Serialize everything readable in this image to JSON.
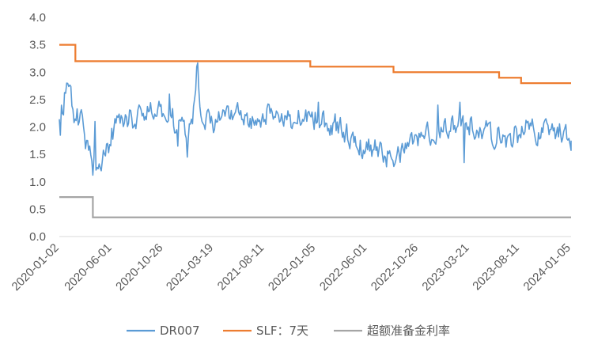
{
  "chart_data": {
    "type": "line",
    "title": "",
    "xlabel": "",
    "ylabel": "",
    "ylim": [
      0,
      4.0
    ],
    "yticks": [
      "0.0",
      "0.5",
      "1.0",
      "1.5",
      "2.0",
      "2.5",
      "3.0",
      "3.5",
      "4.0"
    ],
    "xrange": [
      "2020-01-02",
      "2024-01-05"
    ],
    "xticks": [
      "2020-01-02",
      "2020-06-01",
      "2020-10-26",
      "2021-03-19",
      "2021-08-11",
      "2022-01-05",
      "2022-06-01",
      "2022-10-26",
      "2023-03-21",
      "2023-08-11",
      "2024-01-05"
    ],
    "grid": false,
    "legend_position": "bottom",
    "series": [
      {
        "name": "DR007",
        "color": "#5B9BD5",
        "style": "noisy",
        "points": [
          [
            "2020-01-02",
            2.0
          ],
          [
            "2020-01-10",
            2.2
          ],
          [
            "2020-01-20",
            2.7
          ],
          [
            "2020-01-27",
            2.75
          ],
          [
            "2020-02-05",
            2.55
          ],
          [
            "2020-02-12",
            2.2
          ],
          [
            "2020-02-25",
            2.15
          ],
          [
            "2020-03-05",
            2.1
          ],
          [
            "2020-03-15",
            1.9
          ],
          [
            "2020-03-22",
            1.6
          ],
          [
            "2020-03-28",
            1.5
          ],
          [
            "2020-04-05",
            1.3
          ],
          [
            "2020-04-15",
            1.35
          ],
          [
            "2020-04-25",
            1.3
          ],
          [
            "2020-05-05",
            1.45
          ],
          [
            "2020-05-15",
            1.6
          ],
          [
            "2020-05-25",
            1.75
          ],
          [
            "2020-06-10",
            2.0
          ],
          [
            "2020-07-01",
            2.05
          ],
          [
            "2020-07-20",
            2.15
          ],
          [
            "2020-08-10",
            2.15
          ],
          [
            "2020-09-01",
            2.2
          ],
          [
            "2020-10-01",
            2.3
          ],
          [
            "2020-10-20",
            2.25
          ],
          [
            "2020-11-10",
            2.3
          ],
          [
            "2020-12-01",
            2.05
          ],
          [
            "2020-12-20",
            2.0
          ],
          [
            "2021-01-05",
            1.95
          ],
          [
            "2021-01-20",
            2.3
          ],
          [
            "2021-01-28",
            2.75
          ],
          [
            "2021-02-05",
            2.6
          ],
          [
            "2021-02-15",
            2.25
          ],
          [
            "2021-03-01",
            2.1
          ],
          [
            "2021-04-01",
            2.1
          ],
          [
            "2021-05-01",
            2.15
          ],
          [
            "2021-06-01",
            2.2
          ],
          [
            "2021-07-01",
            2.15
          ],
          [
            "2021-08-01",
            2.2
          ],
          [
            "2021-09-01",
            2.25
          ],
          [
            "2021-10-01",
            2.2
          ],
          [
            "2021-11-01",
            2.15
          ],
          [
            "2021-12-01",
            2.2
          ],
          [
            "2022-01-01",
            2.15
          ],
          [
            "2022-02-01",
            2.1
          ],
          [
            "2022-03-01",
            2.05
          ],
          [
            "2022-04-01",
            1.9
          ],
          [
            "2022-05-01",
            1.75
          ],
          [
            "2022-05-20",
            1.6
          ],
          [
            "2022-06-01",
            1.65
          ],
          [
            "2022-07-01",
            1.6
          ],
          [
            "2022-08-01",
            1.45
          ],
          [
            "2022-08-20",
            1.4
          ],
          [
            "2022-09-10",
            1.5
          ],
          [
            "2022-10-01",
            1.65
          ],
          [
            "2022-11-01",
            1.75
          ],
          [
            "2022-12-01",
            1.9
          ],
          [
            "2023-01-01",
            1.95
          ],
          [
            "2023-02-01",
            2.0
          ],
          [
            "2023-03-01",
            2.15
          ],
          [
            "2023-04-01",
            2.0
          ],
          [
            "2023-05-01",
            1.9
          ],
          [
            "2023-06-01",
            1.85
          ],
          [
            "2023-07-01",
            1.8
          ],
          [
            "2023-08-01",
            1.85
          ],
          [
            "2023-09-01",
            1.95
          ],
          [
            "2023-10-01",
            1.9
          ],
          [
            "2023-11-01",
            1.95
          ],
          [
            "2023-12-01",
            1.95
          ],
          [
            "2024-01-05",
            1.75
          ]
        ],
        "spikes": [
          [
            "2020-01-05",
            1.85
          ],
          [
            "2020-01-22",
            2.8
          ],
          [
            "2020-04-08",
            1.12
          ],
          [
            "2020-04-12",
            2.1
          ],
          [
            "2020-05-01",
            1.2
          ],
          [
            "2020-11-12",
            2.6
          ],
          [
            "2020-12-05",
            1.65
          ],
          [
            "2021-01-01",
            1.45
          ],
          [
            "2021-01-28",
            3.1
          ],
          [
            "2021-02-01",
            3.17
          ],
          [
            "2022-01-12",
            2.45
          ],
          [
            "2022-08-15",
            1.28
          ],
          [
            "2022-12-20",
            2.4
          ],
          [
            "2023-02-22",
            2.45
          ],
          [
            "2023-03-06",
            1.35
          ]
        ]
      },
      {
        "name": "SLF：7天",
        "color": "#ED7D31",
        "style": "step",
        "points": [
          [
            "2020-01-02",
            3.5
          ],
          [
            "2020-02-17",
            3.5
          ],
          [
            "2020-02-17",
            3.2
          ],
          [
            "2021-12-20",
            3.2
          ],
          [
            "2021-12-20",
            3.1
          ],
          [
            "2022-08-15",
            3.1
          ],
          [
            "2022-08-15",
            3.0
          ],
          [
            "2023-06-13",
            3.0
          ],
          [
            "2023-06-13",
            2.9
          ],
          [
            "2023-08-15",
            2.9
          ],
          [
            "2023-08-15",
            2.8
          ],
          [
            "2024-01-05",
            2.8
          ]
        ]
      },
      {
        "name": "超额准备金利率",
        "color": "#A5A5A5",
        "style": "step",
        "points": [
          [
            "2020-01-02",
            0.72
          ],
          [
            "2020-04-07",
            0.72
          ],
          [
            "2020-04-07",
            0.35
          ],
          [
            "2024-01-05",
            0.35
          ]
        ]
      }
    ]
  }
}
